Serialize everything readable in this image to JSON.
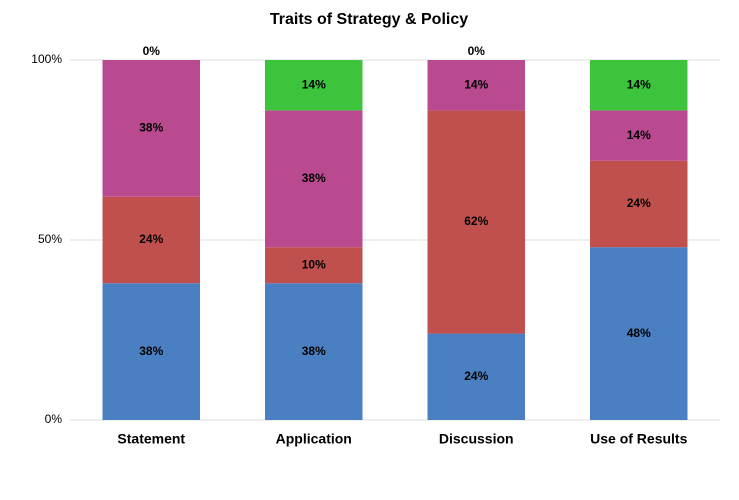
{
  "chart_data": {
    "type": "stacked_bar",
    "title": "Traits of Strategy & Policy",
    "categories": [
      "Statement",
      "Application",
      "Discussion",
      "Use of Results"
    ],
    "series": [
      {
        "color": "#4a7fc1",
        "values": [
          38,
          38,
          24,
          48
        ],
        "value_labels": [
          "38%",
          "38%",
          "24%",
          "48%"
        ]
      },
      {
        "color": "#c0504d",
        "values": [
          24,
          10,
          62,
          24
        ],
        "value_labels": [
          "24%",
          "10%",
          "62%",
          "24%"
        ]
      },
      {
        "color": "#b94a8f",
        "values": [
          38,
          38,
          14,
          14
        ],
        "value_labels": [
          "38%",
          "38%",
          "14%",
          "14%"
        ]
      },
      {
        "color": "#3cc43c",
        "values": [
          0,
          14,
          0,
          14
        ],
        "value_labels": [
          "0%",
          "14%",
          "0%",
          "14%"
        ]
      }
    ],
    "ylim": [
      0,
      100
    ],
    "yticks": [
      {
        "value": 0,
        "label": "0%"
      },
      {
        "value": 50,
        "label": "50%"
      },
      {
        "value": 100,
        "label": "100%"
      }
    ],
    "grid": true
  }
}
